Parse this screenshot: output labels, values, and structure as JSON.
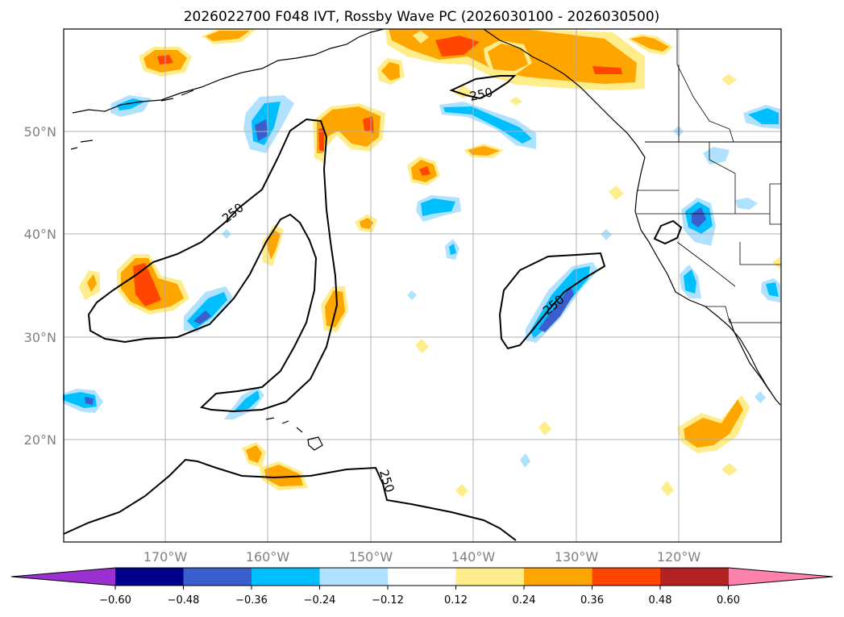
{
  "title": "2026022700 F048 IVT, Rossby Wave PC (2026030100 - 2026030500)",
  "lat_labels": [
    "50°N",
    "40°N",
    "30°N",
    "20°N"
  ],
  "lon_labels": [
    "170°W",
    "160°W",
    "150°W",
    "140°W",
    "130°W",
    "120°W"
  ],
  "contour_labels": [
    "250",
    "250",
    "250",
    "250"
  ],
  "colorbar": {
    "ticks": [
      "−0.60",
      "−0.48",
      "−0.36",
      "−0.24",
      "−0.12",
      "0.12",
      "0.24",
      "0.36",
      "0.48",
      "0.60"
    ],
    "colors": [
      "#9b30d0",
      "#00008b",
      "#3a5fcd",
      "#00bfff",
      "#b0e2ff",
      "#ffffff",
      "#ffec8b",
      "#ffa500",
      "#ff4500",
      "#b22222",
      "#ff82ab"
    ]
  }
}
